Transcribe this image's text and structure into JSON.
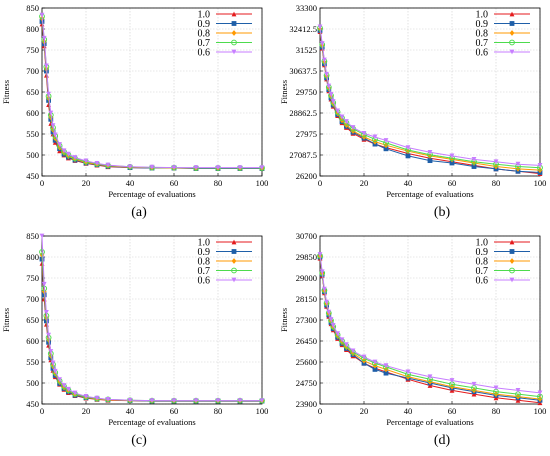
{
  "chart_data": [
    {
      "id": "a",
      "caption": "(a)",
      "type": "line",
      "xlabel": "Percentage of evaluations",
      "ylabel": "Fitness",
      "xlim": [
        0,
        100
      ],
      "ylim": [
        450,
        850
      ],
      "xticks": [
        0,
        20,
        40,
        60,
        80,
        100
      ],
      "yticks": [
        450,
        500,
        550,
        600,
        650,
        700,
        750,
        800,
        850
      ],
      "ytick_labels": [
        "450",
        "500",
        "550",
        "600",
        "650",
        "700",
        "750",
        "800",
        "850"
      ],
      "grid": true,
      "legend_position": "top-right",
      "x": [
        0,
        1,
        2,
        3,
        4,
        5,
        6,
        8,
        10,
        12,
        15,
        20,
        25,
        30,
        40,
        50,
        60,
        70,
        80,
        90,
        100
      ],
      "series": [
        {
          "name": "1.0",
          "color": "#e41a1c",
          "marker": "triangle",
          "values": [
            812,
            760,
            690,
            620,
            575,
            550,
            530,
            510,
            500,
            493,
            487,
            480,
            476,
            472,
            470,
            469,
            469,
            468,
            468,
            468,
            468
          ]
        },
        {
          "name": "0.9",
          "color": "#1f5fa8",
          "marker": "square",
          "values": [
            818,
            765,
            700,
            630,
            585,
            555,
            535,
            515,
            502,
            495,
            488,
            481,
            477,
            473,
            470,
            469,
            469,
            468,
            468,
            468,
            468
          ]
        },
        {
          "name": "0.8",
          "color": "#ff9900",
          "marker": "diamond",
          "values": [
            825,
            770,
            705,
            635,
            590,
            560,
            540,
            518,
            505,
            497,
            490,
            482,
            478,
            474,
            471,
            470,
            469,
            469,
            469,
            469,
            469
          ]
        },
        {
          "name": "0.7",
          "color": "#4ddb4d",
          "marker": "circle",
          "values": [
            830,
            775,
            710,
            640,
            595,
            565,
            545,
            522,
            508,
            500,
            492,
            484,
            479,
            475,
            472,
            470,
            470,
            469,
            469,
            469,
            469
          ]
        },
        {
          "name": "0.6",
          "color": "#c77dff",
          "marker": "triangle-down",
          "values": [
            833,
            778,
            712,
            645,
            600,
            570,
            548,
            525,
            510,
            502,
            494,
            486,
            480,
            476,
            472,
            471,
            470,
            470,
            470,
            470,
            470
          ]
        }
      ]
    },
    {
      "id": "b",
      "caption": "(b)",
      "type": "line",
      "xlabel": "Percentage of evaluations",
      "ylabel": "Fitness",
      "xlim": [
        0,
        100
      ],
      "ylim": [
        26200,
        33300
      ],
      "xticks": [
        0,
        20,
        40,
        60,
        80,
        100
      ],
      "yticks": [
        26200,
        27087.5,
        27975,
        28862.5,
        29750,
        30637.5,
        31525,
        32412.5,
        33300
      ],
      "ytick_labels": [
        "26200",
        "27087.5",
        "27975",
        "28862.5",
        "29750",
        "30637.5",
        "31525",
        "32412.5",
        "33300"
      ],
      "grid": true,
      "legend_position": "top-right",
      "x": [
        0,
        1,
        2,
        3,
        4,
        5,
        6,
        8,
        10,
        12,
        15,
        20,
        25,
        30,
        40,
        50,
        60,
        70,
        80,
        90,
        100
      ],
      "series": [
        {
          "name": "1.0",
          "color": "#e41a1c",
          "marker": "triangle",
          "values": [
            32300,
            31600,
            30900,
            30300,
            29800,
            29450,
            29150,
            28750,
            28450,
            28250,
            28000,
            27750,
            27550,
            27400,
            27150,
            26950,
            26800,
            26650,
            26500,
            26400,
            26300
          ]
        },
        {
          "name": "0.9",
          "color": "#1f5fa8",
          "marker": "square",
          "values": [
            32350,
            31650,
            30950,
            30350,
            29850,
            29500,
            29200,
            28800,
            28500,
            28300,
            28050,
            27800,
            27550,
            27350,
            27050,
            26850,
            26750,
            26600,
            26500,
            26400,
            26350
          ]
        },
        {
          "name": "0.8",
          "color": "#ff9900",
          "marker": "diamond",
          "values": [
            32400,
            31700,
            31000,
            30400,
            29900,
            29550,
            29250,
            28850,
            28550,
            28350,
            28100,
            27850,
            27650,
            27500,
            27250,
            27050,
            26900,
            26750,
            26600,
            26500,
            26450
          ]
        },
        {
          "name": "0.7",
          "color": "#4ddb4d",
          "marker": "circle",
          "values": [
            32450,
            31750,
            31050,
            30450,
            29950,
            29600,
            29300,
            28900,
            28650,
            28450,
            28200,
            27950,
            27750,
            27600,
            27300,
            27100,
            26950,
            26800,
            26700,
            26600,
            26550
          ]
        },
        {
          "name": "0.6",
          "color": "#c77dff",
          "marker": "triangle-down",
          "values": [
            32500,
            31800,
            31100,
            30500,
            30000,
            29650,
            29350,
            28950,
            28700,
            28500,
            28250,
            28000,
            27850,
            27700,
            27400,
            27200,
            27050,
            26900,
            26800,
            26700,
            26650
          ]
        }
      ]
    },
    {
      "id": "c",
      "caption": "(c)",
      "type": "line",
      "xlabel": "Percentage of evaluations",
      "ylabel": "Fitness",
      "xlim": [
        0,
        100
      ],
      "ylim": [
        450,
        850
      ],
      "xticks": [
        0,
        20,
        40,
        60,
        80,
        100
      ],
      "yticks": [
        450,
        500,
        550,
        600,
        650,
        700,
        750,
        800,
        850
      ],
      "ytick_labels": [
        "450",
        "500",
        "550",
        "600",
        "650",
        "700",
        "750",
        "800",
        "850"
      ],
      "grid": true,
      "legend_position": "top-right",
      "x": [
        0,
        1,
        2,
        3,
        4,
        5,
        6,
        8,
        10,
        12,
        15,
        20,
        25,
        30,
        40,
        50,
        60,
        70,
        80,
        90,
        100
      ],
      "series": [
        {
          "name": "1.0",
          "color": "#e41a1c",
          "marker": "triangle",
          "values": [
            785,
            700,
            640,
            590,
            555,
            530,
            515,
            497,
            485,
            477,
            470,
            464,
            461,
            459,
            458,
            457,
            457,
            457,
            457,
            457,
            457
          ]
        },
        {
          "name": "0.9",
          "color": "#1f5fa8",
          "marker": "square",
          "values": [
            795,
            710,
            648,
            597,
            560,
            535,
            518,
            499,
            487,
            479,
            471,
            465,
            462,
            460,
            458,
            457,
            457,
            457,
            457,
            457,
            457
          ]
        },
        {
          "name": "0.8",
          "color": "#ff9900",
          "marker": "diamond",
          "values": [
            805,
            718,
            655,
            603,
            565,
            540,
            522,
            502,
            489,
            481,
            473,
            466,
            462,
            460,
            458,
            458,
            458,
            458,
            458,
            458,
            458
          ]
        },
        {
          "name": "0.7",
          "color": "#4ddb4d",
          "marker": "circle",
          "values": [
            812,
            725,
            660,
            608,
            570,
            544,
            525,
            505,
            492,
            483,
            474,
            467,
            463,
            461,
            459,
            458,
            458,
            458,
            458,
            458,
            458
          ]
        },
        {
          "name": "0.6",
          "color": "#c77dff",
          "marker": "triangle-down",
          "values": [
            850,
            735,
            668,
            614,
            575,
            548,
            528,
            508,
            494,
            485,
            476,
            468,
            464,
            461,
            459,
            458,
            458,
            458,
            458,
            458,
            458
          ]
        }
      ]
    },
    {
      "id": "d",
      "caption": "(d)",
      "type": "line",
      "xlabel": "Percentage of evaluations",
      "ylabel": "Fitness",
      "xlim": [
        0,
        100
      ],
      "ylim": [
        23900,
        30700
      ],
      "xticks": [
        0,
        20,
        40,
        60,
        80,
        100
      ],
      "yticks": [
        23900,
        24750,
        25600,
        26450,
        27300,
        28150,
        29000,
        29850,
        30700
      ],
      "ytick_labels": [
        "23900",
        "24750",
        "25600",
        "26450",
        "27300",
        "28150",
        "29000",
        "29850",
        "30700"
      ],
      "grid": true,
      "legend_position": "top-right",
      "x": [
        0,
        1,
        2,
        3,
        4,
        5,
        6,
        8,
        10,
        12,
        15,
        20,
        25,
        30,
        40,
        50,
        60,
        70,
        80,
        90,
        100
      ],
      "series": [
        {
          "name": "1.0",
          "color": "#e41a1c",
          "marker": "triangle",
          "values": [
            29800,
            29100,
            28400,
            27850,
            27450,
            27150,
            26900,
            26550,
            26300,
            26100,
            25850,
            25550,
            25350,
            25200,
            24900,
            24650,
            24450,
            24300,
            24150,
            24050,
            23950
          ]
        },
        {
          "name": "0.9",
          "color": "#1f5fa8",
          "marker": "square",
          "values": [
            29850,
            29150,
            28450,
            27900,
            27500,
            27200,
            26950,
            26600,
            26350,
            26150,
            25900,
            25550,
            25300,
            25150,
            24950,
            24750,
            24550,
            24400,
            24250,
            24150,
            24050
          ]
        },
        {
          "name": "0.8",
          "color": "#ff9900",
          "marker": "diamond",
          "values": [
            29880,
            29180,
            28480,
            27950,
            27550,
            27250,
            27000,
            26650,
            26400,
            26200,
            25950,
            25650,
            25450,
            25300,
            25000,
            24800,
            24600,
            24450,
            24300,
            24200,
            24100
          ]
        },
        {
          "name": "0.7",
          "color": "#4ddb4d",
          "marker": "circle",
          "values": [
            29900,
            29200,
            28500,
            27980,
            27580,
            27280,
            27030,
            26700,
            26450,
            26250,
            26000,
            25750,
            25550,
            25400,
            25100,
            24900,
            24700,
            24550,
            24400,
            24300,
            24200
          ]
        },
        {
          "name": "0.6",
          "color": "#c77dff",
          "marker": "triangle-down",
          "values": [
            29950,
            29250,
            28550,
            28020,
            27620,
            27320,
            27080,
            26750,
            26500,
            26300,
            26050,
            25800,
            25600,
            25450,
            25200,
            25000,
            24850,
            24700,
            24550,
            24450,
            24350
          ]
        }
      ]
    }
  ]
}
